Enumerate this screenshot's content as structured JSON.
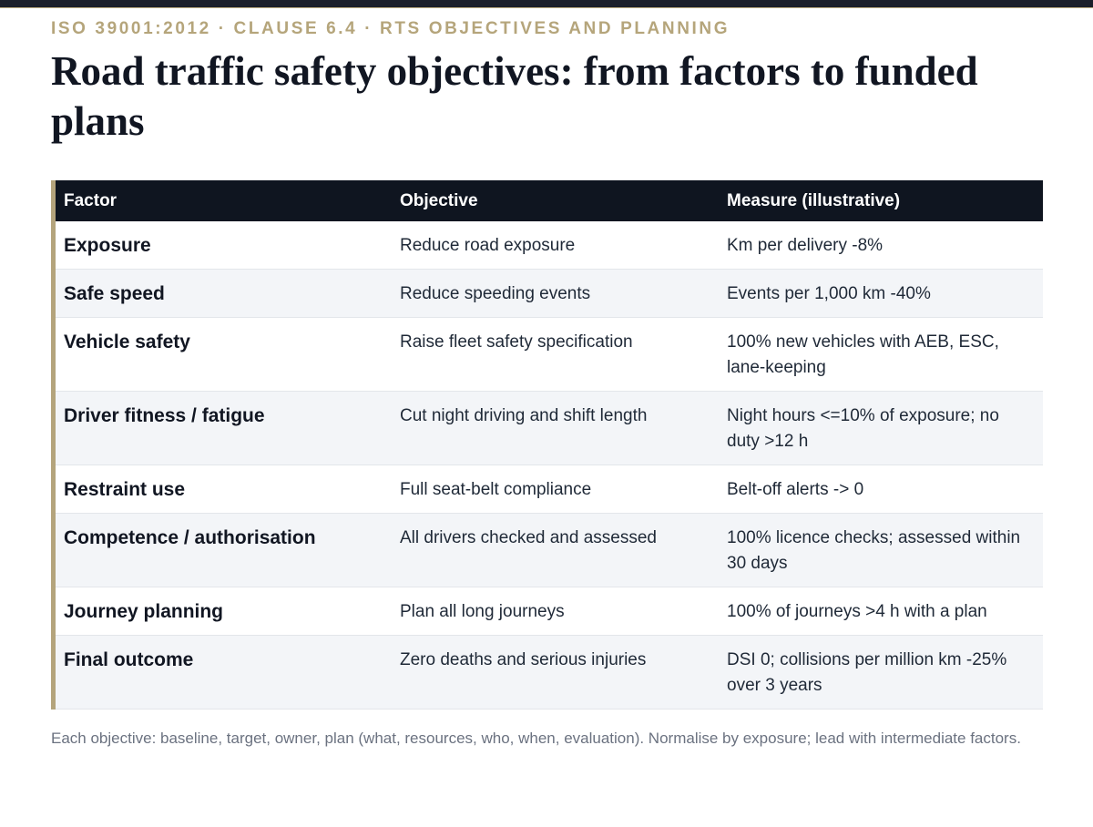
{
  "header": {
    "eyebrow": "ISO 39001:2012 · CLAUSE 6.4 · RTS OBJECTIVES AND PLANNING",
    "title": "Road traffic safety objectives: from factors to funded plans"
  },
  "table": {
    "columns": [
      "Factor",
      "Objective",
      "Measure (illustrative)"
    ],
    "rows": [
      {
        "factor": "Exposure",
        "objective": "Reduce road exposure",
        "measure": "Km per delivery -8%"
      },
      {
        "factor": "Safe speed",
        "objective": "Reduce speeding events",
        "measure": "Events per 1,000 km -40%"
      },
      {
        "factor": "Vehicle safety",
        "objective": "Raise fleet safety specification",
        "measure": "100% new vehicles with AEB, ESC, lane-keeping"
      },
      {
        "factor": "Driver fitness / fatigue",
        "objective": "Cut night driving and shift length",
        "measure": "Night hours <=10% of exposure; no duty >12 h"
      },
      {
        "factor": "Restraint use",
        "objective": "Full seat-belt compliance",
        "measure": "Belt-off alerts -> 0"
      },
      {
        "factor": "Competence / authorisation",
        "objective": "All drivers checked and assessed",
        "measure": "100% licence checks; assessed within 30 days"
      },
      {
        "factor": "Journey planning",
        "objective": "Plan all long journeys",
        "measure": "100% of journeys >4 h with a plan"
      },
      {
        "factor": "Final outcome",
        "objective": "Zero deaths and serious injuries",
        "measure": "DSI 0; collisions per million km -25% over 3 years"
      }
    ]
  },
  "footnote": "Each objective: baseline, target, owner, plan (what, resources, who, when, evaluation). Normalise by exposure; lead with intermediate factors.",
  "colors": {
    "accent": "#b4a47c",
    "header_bg": "#0f1520",
    "stripe": "#f3f5f8"
  }
}
